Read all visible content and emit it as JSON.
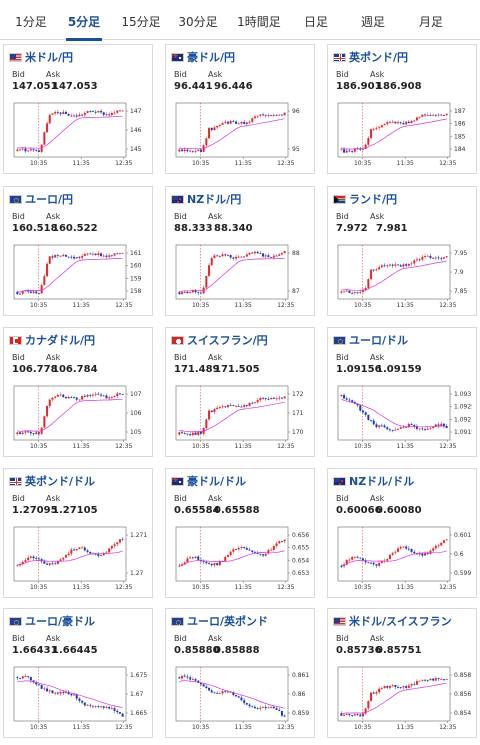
{
  "tabs": [
    {
      "label": "1分足",
      "active": false
    },
    {
      "label": "5分足",
      "active": true
    },
    {
      "label": "15分足",
      "active": false
    },
    {
      "label": "30分足",
      "active": false
    },
    {
      "label": "1時間足",
      "active": false
    },
    {
      "label": "日足",
      "active": false
    },
    {
      "label": "週足",
      "active": false
    },
    {
      "label": "月足",
      "active": false
    }
  ],
  "labels": {
    "bid": "Bid",
    "ask": "Ask"
  },
  "colors": {
    "accent": "#1a4f9c",
    "up": "#e8262b",
    "down": "#1b3bb9",
    "ma": "#d534e0"
  },
  "cards": [
    {
      "pair": "米ドル/円",
      "flag": "us",
      "bid": "147.051",
      "ask": "147.053",
      "icon": "us-flag-icon",
      "chart_data": {
        "type": "candlestick",
        "x_ticks": [
          "10:35",
          "11:35",
          "12:35"
        ],
        "y_ticks": [
          "147",
          "146",
          "145"
        ],
        "trend": "spike-up-plateau"
      }
    },
    {
      "pair": "豪ドル/円",
      "flag": "au",
      "bid": "96.441",
      "ask": "96.446",
      "icon": "au-flag-icon",
      "chart_data": {
        "type": "candlestick",
        "x_ticks": [
          "10:35",
          "11:35",
          "12:35"
        ],
        "y_ticks": [
          "96",
          "95"
        ],
        "trend": "spike-up-rise"
      }
    },
    {
      "pair": "英ポンド/円",
      "flag": "gb",
      "bid": "186.901",
      "ask": "186.908",
      "icon": "gb-flag-icon",
      "chart_data": {
        "type": "candlestick",
        "x_ticks": [
          "10:35",
          "11:35",
          "12:35"
        ],
        "y_ticks": [
          "187",
          "186",
          "185",
          "184"
        ],
        "trend": "spike-up-rise"
      }
    },
    {
      "pair": "ユーロ/円",
      "flag": "eu",
      "bid": "160.518",
      "ask": "160.522",
      "icon": "eu-flag-icon",
      "chart_data": {
        "type": "candlestick",
        "x_ticks": [
          "10:35",
          "11:35",
          "12:35"
        ],
        "y_ticks": [
          "161",
          "160",
          "159",
          "158"
        ],
        "trend": "spike-up-plateau"
      }
    },
    {
      "pair": "NZドル/円",
      "flag": "nz",
      "bid": "88.333",
      "ask": "88.340",
      "icon": "nz-flag-icon",
      "chart_data": {
        "type": "candlestick",
        "x_ticks": [
          "10:35",
          "11:35",
          "12:35"
        ],
        "y_ticks": [
          "88",
          "87"
        ],
        "trend": "spike-up-plateau"
      }
    },
    {
      "pair": "ランド/円",
      "flag": "za",
      "bid": "7.972",
      "ask": "7.981",
      "icon": "za-flag-icon",
      "chart_data": {
        "type": "candlestick",
        "x_ticks": [
          "10:35",
          "11:35",
          "12:35"
        ],
        "y_ticks": [
          "7.95",
          "7.9",
          "7.85"
        ],
        "trend": "spike-up-rise"
      }
    },
    {
      "pair": "カナダドル/円",
      "flag": "ca",
      "bid": "106.778",
      "ask": "106.784",
      "icon": "ca-flag-icon",
      "chart_data": {
        "type": "candlestick",
        "x_ticks": [
          "10:35",
          "11:35",
          "12:35"
        ],
        "y_ticks": [
          "107",
          "106",
          "105"
        ],
        "trend": "spike-up-plateau"
      }
    },
    {
      "pair": "スイスフラン/円",
      "flag": "ch",
      "bid": "171.489",
      "ask": "171.505",
      "icon": "ch-flag-icon",
      "chart_data": {
        "type": "candlestick",
        "x_ticks": [
          "10:35",
          "11:35",
          "12:35"
        ],
        "y_ticks": [
          "172",
          "171",
          "170"
        ],
        "trend": "spike-up-rise"
      }
    },
    {
      "pair": "ユーロ/ドル",
      "flag": "eu",
      "bid": "1.09156",
      "ask": "1.09159",
      "icon": "eu-flag-icon",
      "chart_data": {
        "type": "candlestick",
        "x_ticks": [
          "10:35",
          "11:35",
          "12:35"
        ],
        "y_ticks": [
          "1.093",
          "1.0925",
          "1.092",
          "1.0915"
        ],
        "trend": "drop-flat"
      }
    },
    {
      "pair": "英ポンド/ドル",
      "flag": "gb",
      "bid": "1.27095",
      "ask": "1.27105",
      "icon": "gb-flag-icon",
      "chart_data": {
        "type": "candlestick",
        "x_ticks": [
          "10:35",
          "11:35",
          "12:35"
        ],
        "y_ticks": [
          "1.271",
          "1.27"
        ],
        "trend": "choppy-up"
      }
    },
    {
      "pair": "豪ドル/ドル",
      "flag": "au",
      "bid": "0.65584",
      "ask": "0.65588",
      "icon": "au-flag-icon",
      "chart_data": {
        "type": "candlestick",
        "x_ticks": [
          "10:35",
          "11:35",
          "12:35"
        ],
        "y_ticks": [
          "0.656",
          "0.655",
          "0.654",
          "0.653"
        ],
        "trend": "choppy-up"
      }
    },
    {
      "pair": "NZドル/ドル",
      "flag": "nz",
      "bid": "0.60066",
      "ask": "0.60080",
      "icon": "nz-flag-icon",
      "chart_data": {
        "type": "candlestick",
        "x_ticks": [
          "10:35",
          "11:35",
          "12:35"
        ],
        "y_ticks": [
          "0.601",
          "0.6",
          "0.599"
        ],
        "trend": "choppy-up"
      }
    },
    {
      "pair": "ユーロ/豪ドル",
      "flag": "eu",
      "bid": "1.66431",
      "ask": "1.66445",
      "icon": "eu-flag-icon",
      "chart_data": {
        "type": "candlestick",
        "x_ticks": [
          "10:35",
          "11:35",
          "12:35"
        ],
        "y_ticks": [
          "1.675",
          "1.67",
          "1.665"
        ],
        "trend": "decline"
      }
    },
    {
      "pair": "ユーロ/英ポンド",
      "flag": "eu",
      "bid": "0.85880",
      "ask": "0.85888",
      "icon": "eu-flag-icon",
      "chart_data": {
        "type": "candlestick",
        "x_ticks": [
          "10:35",
          "11:35",
          "12:35"
        ],
        "y_ticks": [
          "0.861",
          "0.86",
          "0.859"
        ],
        "trend": "decline"
      }
    },
    {
      "pair": "米ドル/スイスフラン",
      "flag": "us",
      "bid": "0.85736",
      "ask": "0.85751",
      "icon": "us-flag-icon",
      "chart_data": {
        "type": "candlestick",
        "x_ticks": [
          "10:35",
          "11:35",
          "12:35"
        ],
        "y_ticks": [
          "0.858",
          "0.856",
          "0.854"
        ],
        "trend": "spike-up-rise"
      }
    }
  ]
}
